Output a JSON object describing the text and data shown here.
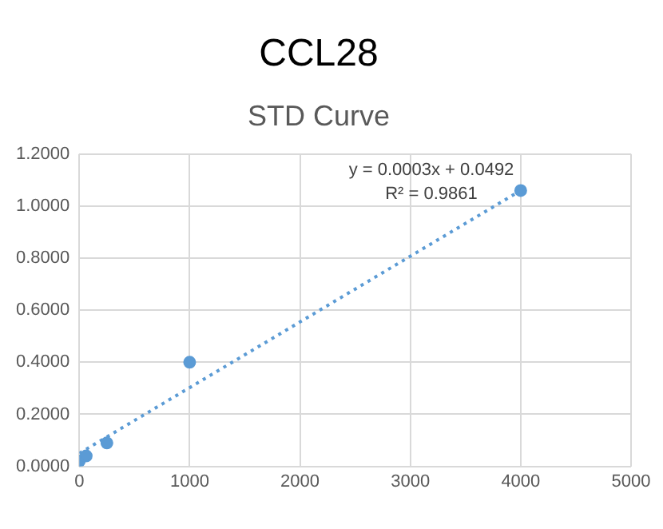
{
  "chart_data": {
    "type": "scatter",
    "title": "CCL28",
    "subtitle": "STD Curve",
    "series": [
      {
        "color": "#5b9bd5",
        "marker": "circle",
        "x": [
          0,
          62.5,
          250,
          1000,
          4000
        ],
        "values": [
          0.02,
          0.04,
          0.09,
          0.4,
          1.06
        ]
      },
      {
        "type": "line",
        "color": "#5b9bd5",
        "line_style": "dotted",
        "x": [
          0,
          4000
        ],
        "values": [
          0.05,
          1.06
        ]
      }
    ],
    "annotations": [
      "y = 0.0003x + 0.0492",
      "R² = 0.9861"
    ],
    "xlim": [
      0,
      5000
    ],
    "xticks": [
      0,
      1000,
      2000,
      3000,
      4000,
      5000
    ],
    "ylim": [
      0,
      1.2
    ],
    "yticks": [
      {
        "value": 0,
        "label": "0.0000"
      },
      {
        "value": 0.2,
        "label": "0.2000"
      },
      {
        "value": 0.4,
        "label": "0.4000"
      },
      {
        "value": 0.6,
        "label": "0.6000"
      },
      {
        "value": 0.8,
        "label": "0.8000"
      },
      {
        "value": 1,
        "label": "1.0000"
      },
      {
        "value": 1.2,
        "label": "1.2000"
      }
    ],
    "grid": true,
    "legend": false
  }
}
